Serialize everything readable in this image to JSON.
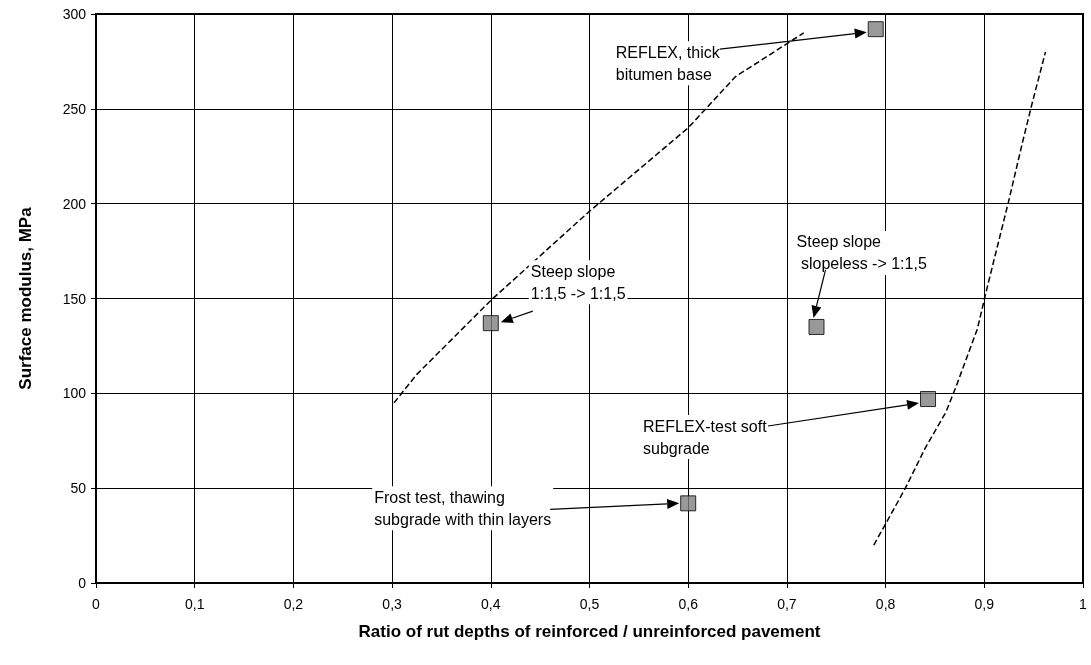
{
  "chart_data": {
    "type": "scatter",
    "xlabel": "Ratio of rut depths of reinforced / unreinforced pavement",
    "ylabel": "Surface modulus, MPa",
    "xlim": [
      0,
      1
    ],
    "xticks": [
      0,
      {
        "value": 0.1,
        "label": "0,1"
      },
      {
        "value": 0.2,
        "label": "0,2"
      },
      {
        "value": 0.3,
        "label": "0,3"
      },
      {
        "value": 0.4,
        "label": "0,4"
      },
      {
        "value": 0.5,
        "label": "0,5"
      },
      {
        "value": 0.6,
        "label": "0,6"
      },
      {
        "value": 0.7,
        "label": "0,7"
      },
      {
        "value": 0.8,
        "label": "0,8"
      },
      {
        "value": 0.9,
        "label": "0,9"
      },
      1
    ],
    "ylim": [
      0,
      300
    ],
    "yticks": [
      0,
      50,
      100,
      150,
      200,
      250,
      300
    ],
    "grid": true,
    "marker": "square",
    "series": [
      {
        "type": "scatter",
        "color": "#808080",
        "x": [
          0.4,
          0.6,
          0.73,
          0.79,
          0.843
        ],
        "values": [
          137,
          42,
          135,
          292,
          97
        ]
      },
      {
        "type": "line",
        "marker": "none",
        "color": "#000000",
        "line_style": "dashed",
        "x": [
          0.302,
          0.325,
          0.4,
          0.5,
          0.6,
          0.648,
          0.717
        ],
        "values": [
          95,
          110,
          149,
          196,
          240,
          267,
          290
        ]
      },
      {
        "type": "line",
        "marker": "none",
        "color": "#000000",
        "line_style": "dashed",
        "x": [
          0.788,
          0.802,
          0.82,
          0.84,
          0.861,
          0.871,
          0.893,
          0.903,
          0.925,
          0.939,
          0.949,
          0.962
        ],
        "values": [
          20,
          33,
          50,
          71,
          90,
          103,
          134,
          156,
          202,
          233,
          254,
          280
        ]
      }
    ],
    "annotations": [
      {
        "text": "Steep slope\n1:1,5 -> 1:1,5",
        "x": 0.4,
        "y": 137
      },
      "Frost test, thawing\nsubgrade with thin layers",
      "Steep slope\n slopeless -> 1:1,5",
      "REFLEX, thick\nbitumen base",
      "REFLEX-test soft\nsubgrade"
    ]
  }
}
